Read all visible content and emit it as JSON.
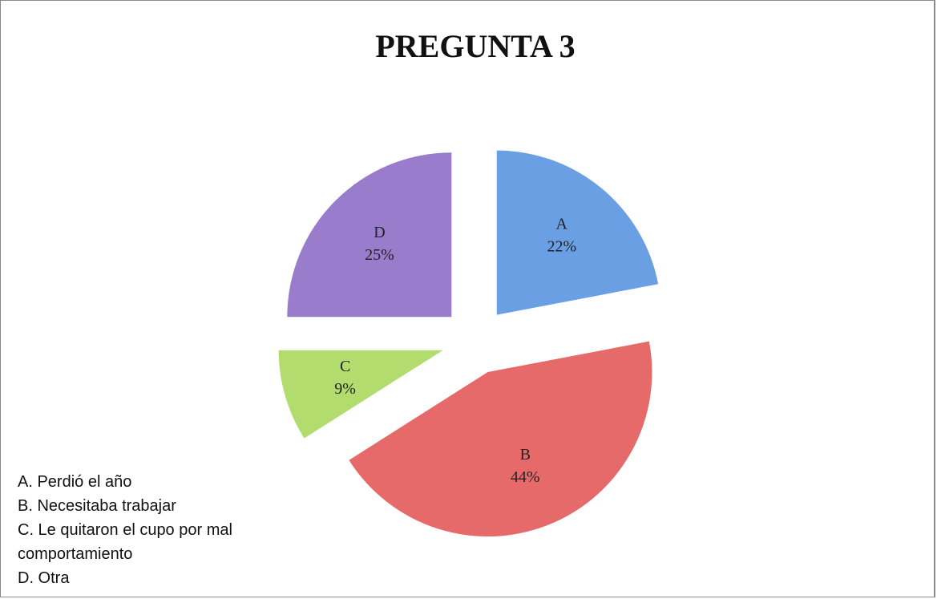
{
  "chart_data": {
    "type": "pie",
    "title": "PREGUNTA 3",
    "categories": [
      "A",
      "B",
      "C",
      "D"
    ],
    "values": [
      22,
      44,
      9,
      25
    ],
    "value_labels": [
      "22%",
      "44%",
      "9%",
      "25%"
    ],
    "colors": [
      "#6a9fe3",
      "#e66a6a",
      "#b2dc6e",
      "#9a7ccc"
    ],
    "legend_text": [
      "A. Perdió el año",
      "B. Necesitaba trabajar",
      "C. Le quitaron el cupo por mal comportamiento",
      "D. Otra"
    ]
  }
}
